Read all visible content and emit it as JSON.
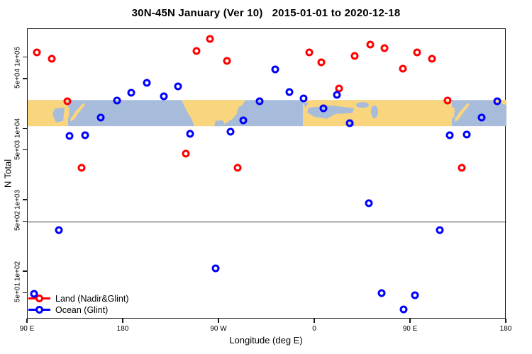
{
  "title": "30N-45N January (Ver 10)   2015-01-01 to 2020-12-18",
  "chart_data": {
    "type": "scatter",
    "title": "30N-45N January (Ver 10)   2015-01-01 to 2020-12-18",
    "xlabel": "Longitude (deg E)",
    "ylabel": "N Total",
    "grid": false,
    "legend_position": "bottom-left",
    "x_axis": {
      "description": "longitude wrapped, starting at 90E and travelling east 450 degrees",
      "span_deg": 450,
      "ticks": [
        {
          "label": "90 E",
          "t": 0
        },
        {
          "label": "180",
          "t": 90
        },
        {
          "label": "90 W",
          "t": 180
        },
        {
          "label": "0",
          "t": 270
        },
        {
          "label": "90 E",
          "t": 360
        },
        {
          "label": "180",
          "t": 450
        }
      ]
    },
    "y_axis": {
      "scale": "log",
      "min": 21.6,
      "max": 252000,
      "ticks": [
        {
          "label": "1e+05",
          "v": 100000
        },
        {
          "label": "5e+04",
          "v": 50000
        },
        {
          "label": "1e+04",
          "v": 10000
        },
        {
          "label": "5e+03",
          "v": 5000
        },
        {
          "label": "1e+03",
          "v": 1000
        },
        {
          "label": "5e+02",
          "v": 500
        },
        {
          "label": "1e+02",
          "v": 100
        },
        {
          "label": "5e+01",
          "v": 50
        }
      ]
    },
    "reference_line_value": 500,
    "map_band": {
      "description": "30N-45N world land/ocean strip drawn across plot",
      "value_top": 25500,
      "value_bottom": 11000,
      "land_color": "#F9D57E",
      "ocean_color": "#A7BCDA"
    },
    "series": [
      {
        "name": "Land (Nadir&Glint)",
        "color": "#FF0000",
        "points": [
          [
            8.7,
            119000
          ],
          [
            22.7,
            96600
          ],
          [
            37.3,
            24500
          ],
          [
            50.7,
            2860
          ],
          [
            148.7,
            4530
          ],
          [
            158.7,
            124000
          ],
          [
            171.3,
            183000
          ],
          [
            187.3,
            90200
          ],
          [
            197.3,
            2860
          ],
          [
            264.7,
            119000
          ],
          [
            276,
            86100
          ],
          [
            292.7,
            37000
          ],
          [
            307.3,
            106000
          ],
          [
            322,
            153000
          ],
          [
            335.3,
            136000
          ],
          [
            352.7,
            70200
          ],
          [
            366,
            119000
          ],
          [
            380,
            96600
          ],
          [
            394.7,
            25100
          ],
          [
            408,
            2860
          ]
        ]
      },
      {
        "name": "Ocean (Glint)",
        "color": "#0000FF",
        "points": [
          [
            6,
            49
          ],
          [
            29.3,
            384
          ],
          [
            39.3,
            8020
          ],
          [
            54,
            8200
          ],
          [
            68.7,
            14500
          ],
          [
            84,
            25100
          ],
          [
            97.3,
            32300
          ],
          [
            112,
            44500
          ],
          [
            128,
            28800
          ],
          [
            141.3,
            39600
          ],
          [
            152.7,
            8590
          ],
          [
            176.7,
            112
          ],
          [
            190.7,
            9190
          ],
          [
            202.7,
            13200
          ],
          [
            218,
            24500
          ],
          [
            232.7,
            68600
          ],
          [
            246,
            33000
          ],
          [
            259.3,
            26900
          ],
          [
            278,
            19500
          ],
          [
            290.7,
            30100
          ],
          [
            302.7,
            12100
          ],
          [
            320.7,
            914
          ],
          [
            332.7,
            50
          ],
          [
            353.3,
            30
          ],
          [
            364,
            47
          ],
          [
            387.3,
            384
          ],
          [
            396.7,
            8200
          ],
          [
            412.7,
            8300
          ],
          [
            426.7,
            14500
          ],
          [
            441.3,
            24500
          ]
        ]
      }
    ]
  },
  "colors": {
    "axis": "#1a1a1a",
    "land_point": "#FF0000",
    "ocean_point": "#0000FF"
  }
}
